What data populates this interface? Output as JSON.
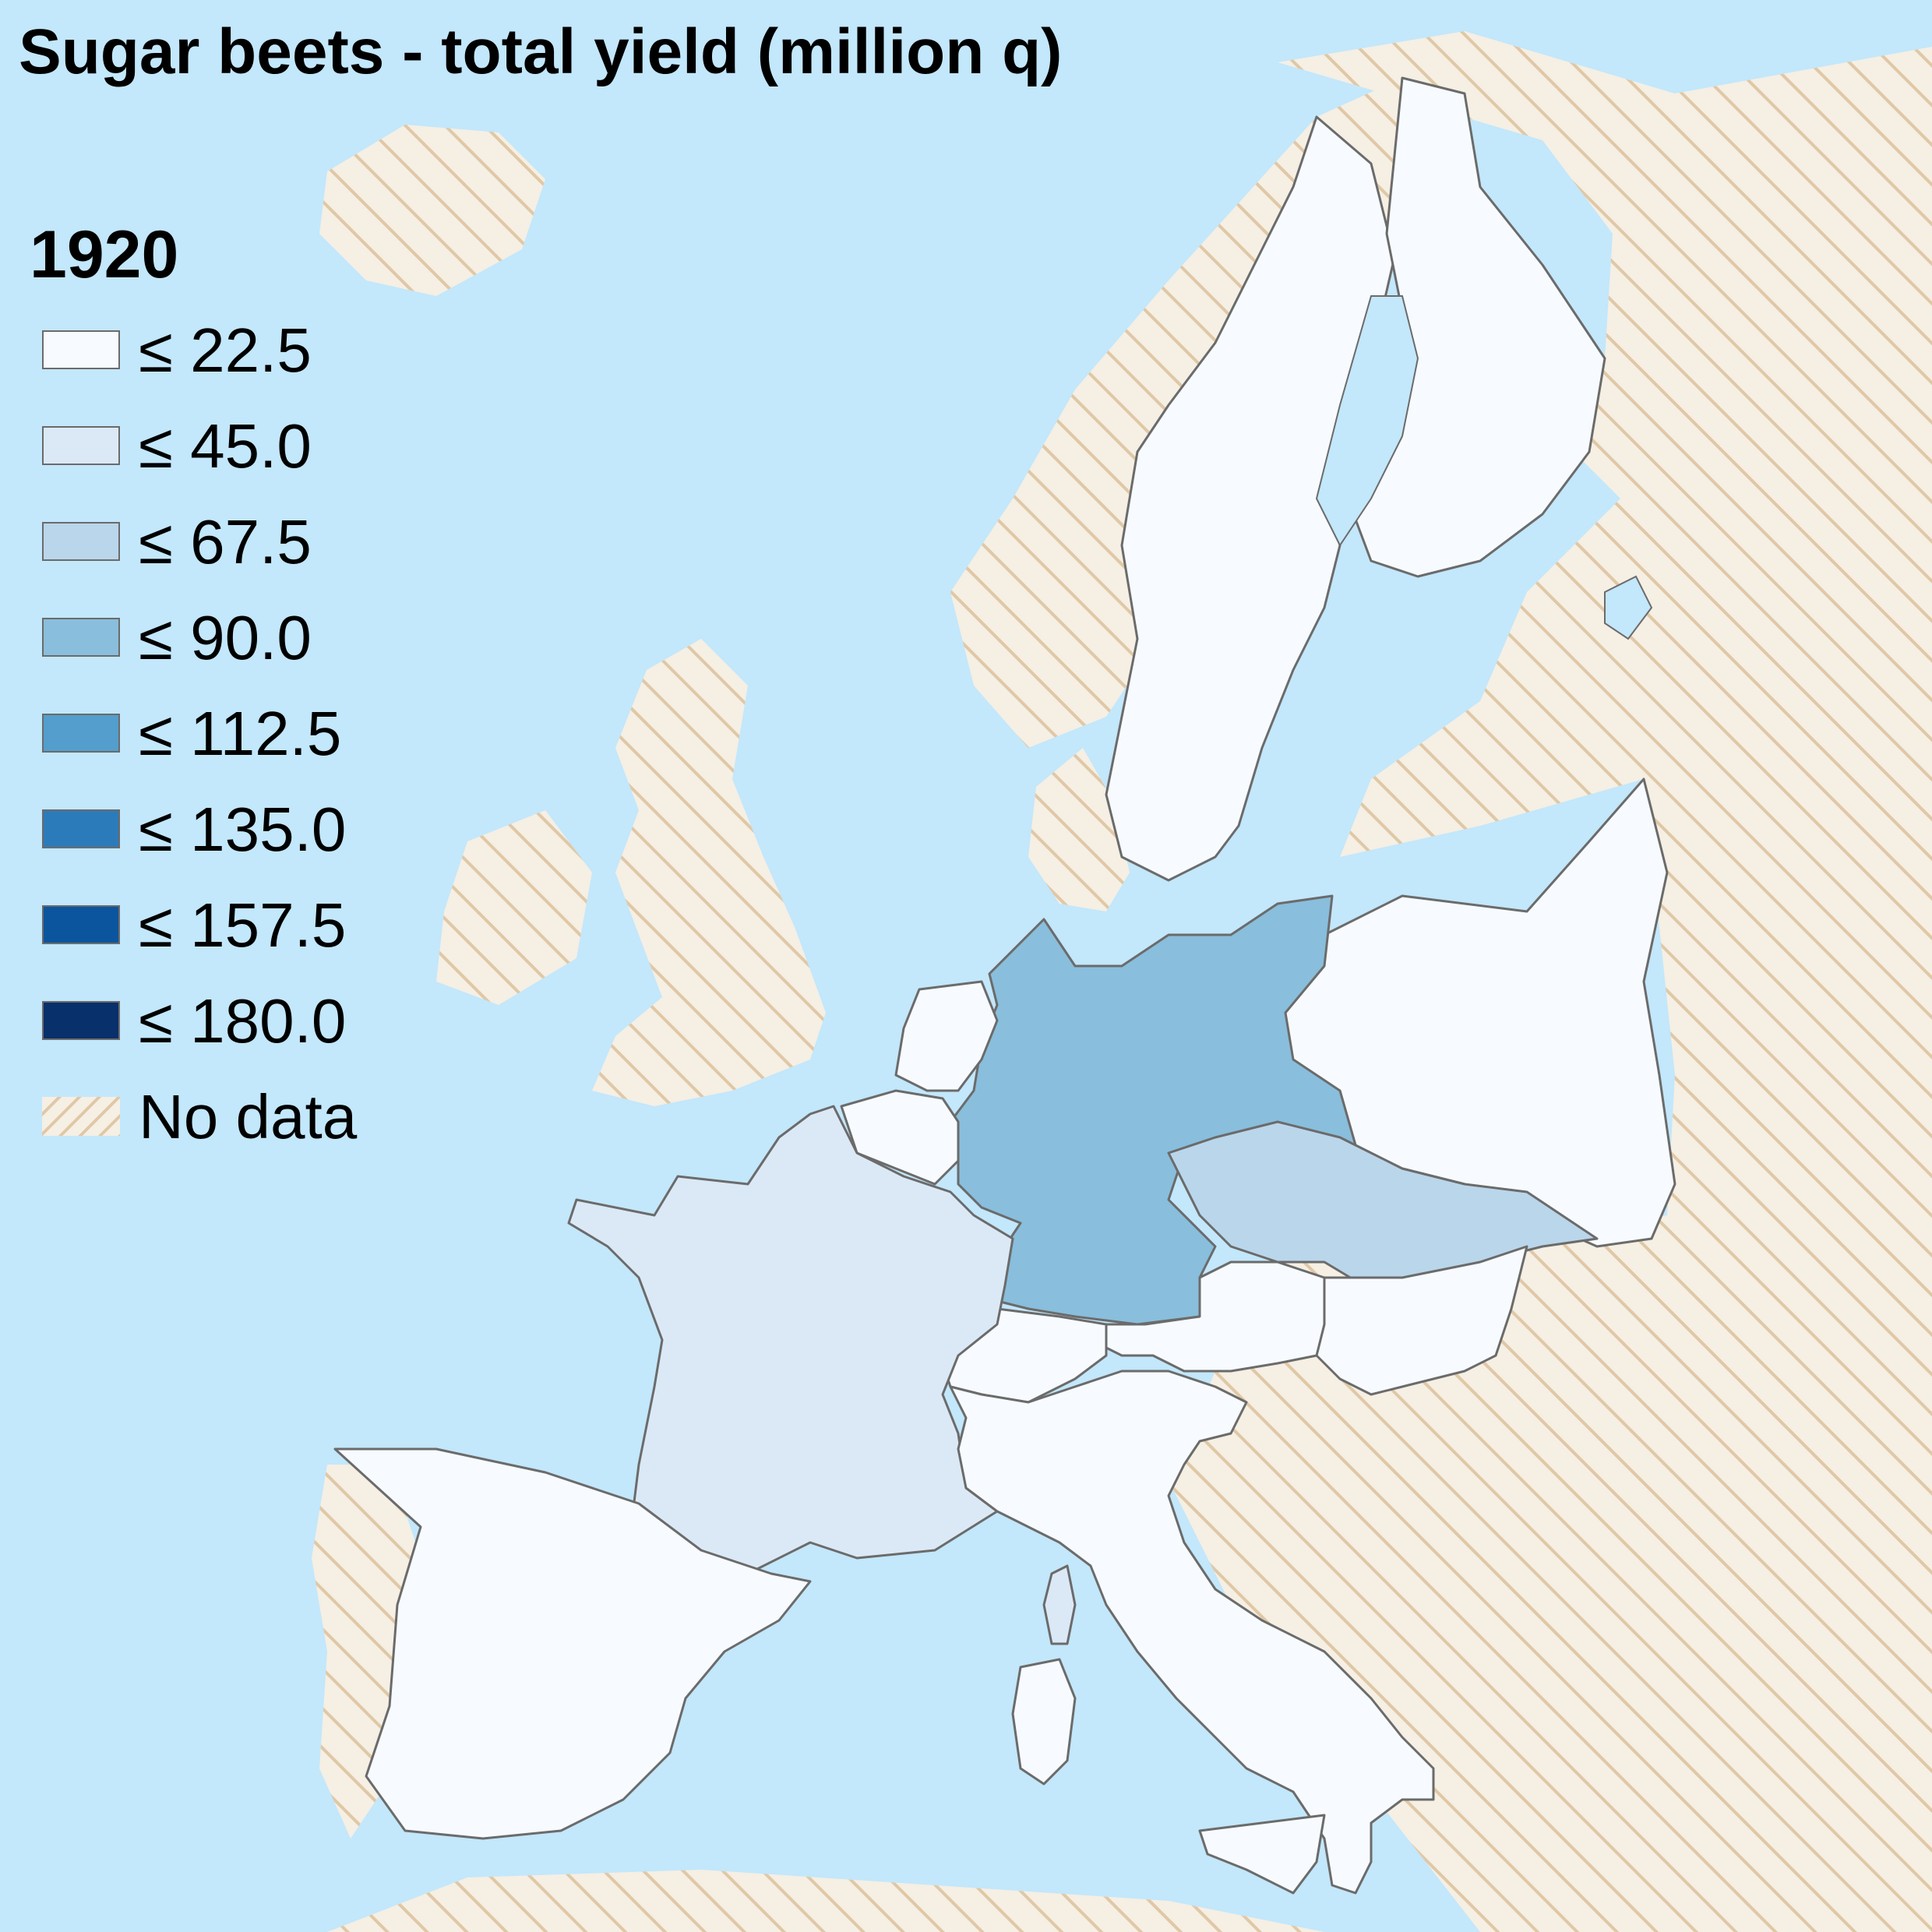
{
  "title": "Sugar beets - total yield (million q)",
  "year": "1920",
  "legend": {
    "items": [
      {
        "label": "≤ 22.5",
        "color": "#f7fbff"
      },
      {
        "label": "≤ 45.0",
        "color": "#dbe9f6"
      },
      {
        "label": "≤ 67.5",
        "color": "#bad6eb"
      },
      {
        "label": "≤ 90.0",
        "color": "#89bedc"
      },
      {
        "label": "≤ 112.5",
        "color": "#539ecd"
      },
      {
        "label": "≤ 135.0",
        "color": "#2b7bba"
      },
      {
        "label": "≤ 157.5",
        "color": "#0b559f"
      },
      {
        "label": "≤ 180.0",
        "color": "#08306b"
      }
    ],
    "no_data_label": "No data"
  },
  "colors": {
    "sea": "#c3e7fb",
    "no_data_fill": "#f5efe4",
    "no_data_hatch": "#e0c8a6",
    "border": "#6b6b6b"
  },
  "regions": [
    {
      "name": "Germany",
      "bin": 3
    },
    {
      "name": "Czechoslovakia",
      "bin": 2
    },
    {
      "name": "France",
      "bin": 1
    },
    {
      "name": "Corsica",
      "bin": 1
    },
    {
      "name": "Spain",
      "bin": 0
    },
    {
      "name": "Portugal",
      "bin": null
    },
    {
      "name": "Italy",
      "bin": 0
    },
    {
      "name": "Sardinia",
      "bin": 0
    },
    {
      "name": "Sicily",
      "bin": 0
    },
    {
      "name": "Switzerland",
      "bin": 0
    },
    {
      "name": "Austria",
      "bin": 0
    },
    {
      "name": "Hungary",
      "bin": 0
    },
    {
      "name": "Poland",
      "bin": 0
    },
    {
      "name": "Belgium",
      "bin": 0
    },
    {
      "name": "Netherlands",
      "bin": 0
    },
    {
      "name": "Sweden",
      "bin": 0
    },
    {
      "name": "Finland",
      "bin": 0
    },
    {
      "name": "Norway",
      "bin": null
    },
    {
      "name": "Denmark",
      "bin": null
    },
    {
      "name": "United Kingdom",
      "bin": null
    },
    {
      "name": "Ireland",
      "bin": null
    },
    {
      "name": "Iceland",
      "bin": null
    },
    {
      "name": "Eastern Europe",
      "bin": null
    }
  ]
}
